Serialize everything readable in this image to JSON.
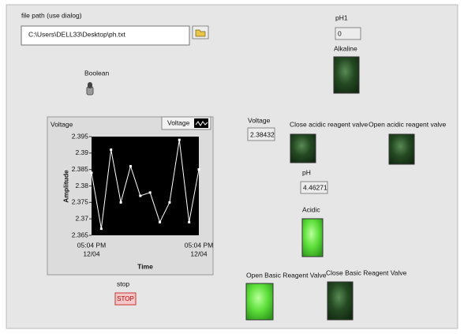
{
  "file_path": {
    "label": "file path (use dialog)",
    "value": "C:\\Users\\DELL33\\Desktop\\ph.txt"
  },
  "boolean": {
    "label": "Boolean"
  },
  "ph1": {
    "label": "pH1",
    "value": "0"
  },
  "alkaline": {
    "label": "Alkaline",
    "on": false
  },
  "graph": {
    "label": "Voltage",
    "legend": "Voltage",
    "y_label": "Amplitude",
    "x_label": "Time",
    "values": [
      2.384,
      2.367,
      2.391,
      2.375,
      2.386,
      2.377,
      2.378,
      2.369,
      2.375,
      2.394,
      2.369,
      2.385
    ],
    "ylim": [
      2.365,
      2.395
    ],
    "yticks": [
      2.365,
      2.37,
      2.375,
      2.38,
      2.385,
      2.39,
      2.395
    ],
    "xticks": [
      {
        "time": "05:04 PM",
        "date": "12/04"
      },
      {
        "time": "05:04 PM",
        "date": "12/04"
      }
    ]
  },
  "stop": {
    "label": "stop",
    "button": "STOP"
  },
  "voltage": {
    "label": "Voltage",
    "value": "2.38432"
  },
  "close_acidic": {
    "label": "Close acidic reagent valve",
    "on": false
  },
  "open_acidic": {
    "label": "Open acidic reagent valve",
    "on": false
  },
  "ph": {
    "label": "pH",
    "value": "4.46271"
  },
  "acidic": {
    "label": "Acidic",
    "on": true
  },
  "open_basic": {
    "label": "Open Basic Reagent Valve",
    "on": true
  },
  "close_basic": {
    "label": "Close Basic Reagent Valve",
    "on": false
  }
}
